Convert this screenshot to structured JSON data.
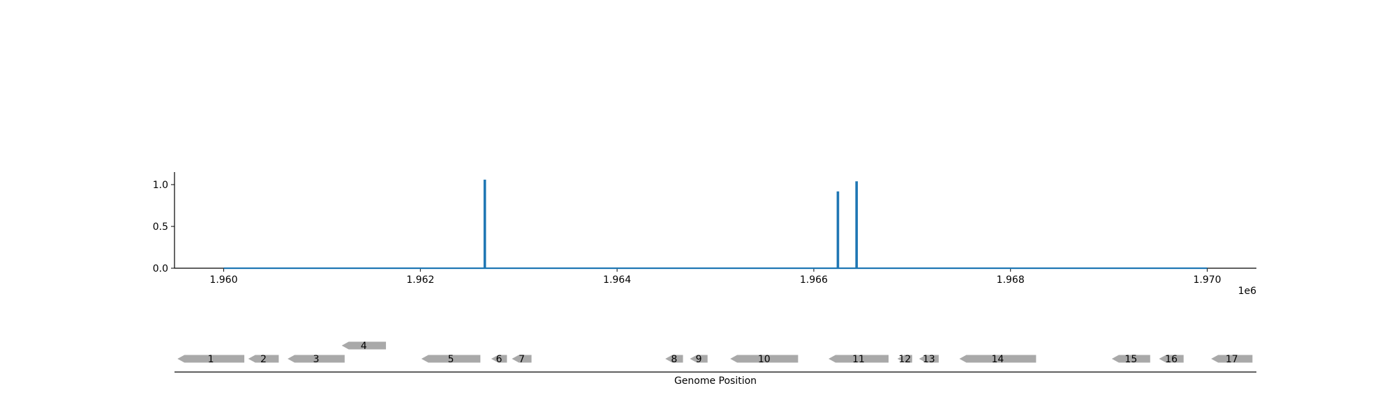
{
  "chart_data": {
    "type": "line",
    "x_offset_label": "1e6",
    "xlim": [
      1959500,
      1970500
    ],
    "ylim": [
      0,
      1.15
    ],
    "x_ticks": [
      1960000,
      1962000,
      1964000,
      1966000,
      1968000,
      1970000
    ],
    "x_tick_labels": [
      "1.960",
      "1.962",
      "1.964",
      "1.966",
      "1.968",
      "1.970"
    ],
    "y_ticks": [
      0,
      0.5,
      1.0
    ],
    "y_tick_labels": [
      "0.0",
      "0.5",
      "1.0"
    ],
    "grid": false,
    "series": [
      {
        "color": "#1f77b4",
        "x": [
          1960000,
          1962650,
          1962650,
          1962660,
          1962660,
          1966240,
          1966240,
          1966250,
          1966250,
          1966430,
          1966430,
          1966440,
          1966440,
          1970000
        ],
        "y": [
          0,
          0,
          1.05,
          1.05,
          0,
          0,
          0.91,
          0.91,
          0,
          0,
          1.03,
          1.03,
          0,
          0
        ]
      }
    ],
    "gene_track": {
      "xlabel": "Genome Position",
      "color": "#a9a9a9",
      "genes": [
        {
          "label": "1",
          "start": 1959530,
          "end": 1960210,
          "strand": "-",
          "row": 0
        },
        {
          "label": "2",
          "start": 1960250,
          "end": 1960560,
          "strand": "-",
          "row": 0
        },
        {
          "label": "3",
          "start": 1960650,
          "end": 1961230,
          "strand": "-",
          "row": 0
        },
        {
          "label": "4",
          "start": 1961200,
          "end": 1961650,
          "strand": "-",
          "row": 1
        },
        {
          "label": "5",
          "start": 1962010,
          "end": 1962610,
          "strand": "-",
          "row": 0
        },
        {
          "label": "6",
          "start": 1962720,
          "end": 1962880,
          "strand": "-",
          "row": 0
        },
        {
          "label": "7",
          "start": 1962930,
          "end": 1963130,
          "strand": "-",
          "row": 0
        },
        {
          "label": "8",
          "start": 1964490,
          "end": 1964670,
          "strand": "-",
          "row": 0
        },
        {
          "label": "9",
          "start": 1964740,
          "end": 1964920,
          "strand": "-",
          "row": 0
        },
        {
          "label": "10",
          "start": 1965150,
          "end": 1965840,
          "strand": "-",
          "row": 0
        },
        {
          "label": "11",
          "start": 1966150,
          "end": 1966760,
          "strand": "-",
          "row": 0
        },
        {
          "label": "12",
          "start": 1966850,
          "end": 1967000,
          "strand": "-",
          "row": 0
        },
        {
          "label": "13",
          "start": 1967070,
          "end": 1967270,
          "strand": "-",
          "row": 0
        },
        {
          "label": "14",
          "start": 1967480,
          "end": 1968260,
          "strand": "-",
          "row": 0
        },
        {
          "label": "15",
          "start": 1969030,
          "end": 1969420,
          "strand": "-",
          "row": 0
        },
        {
          "label": "16",
          "start": 1969510,
          "end": 1969760,
          "strand": "-",
          "row": 0
        },
        {
          "label": "17",
          "start": 1970040,
          "end": 1970460,
          "strand": "-",
          "row": 0
        }
      ]
    }
  }
}
